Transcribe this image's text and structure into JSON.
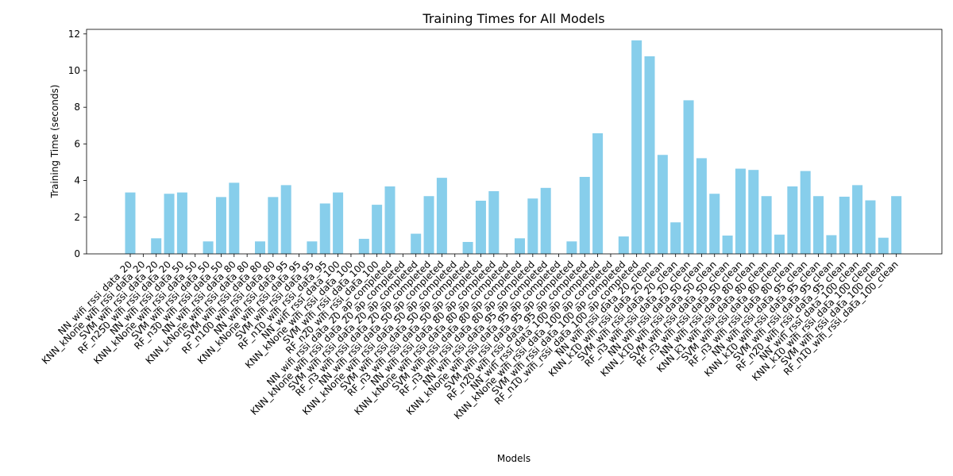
{
  "chart_data": {
    "type": "bar",
    "title": "Training Times for All Models",
    "xlabel": "Models",
    "ylabel": "Training Time (seconds)",
    "ylim": [
      0,
      12.25
    ],
    "yticks": [
      0,
      2,
      4,
      6,
      8,
      10,
      12
    ],
    "bar_color": "#87CEEB",
    "grid": false,
    "categories": [
      "NN_wifi_rssi_data_20",
      "KNN_kNone_wifi_rssi_data_20",
      "SVM_wifi_rssi_data_20",
      "RF_n250_wifi_rssi_data_20",
      "NN_wifi_rssi_data_50",
      "KNN_kNone_wifi_rssi_data_50",
      "SVM_wifi_rssi_data_50",
      "RF_n30_wifi_rssi_data_50",
      "NN_wifi_rssi_data_80",
      "KNN_kNone_wifi_rssi_data_80",
      "SVM_wifi_rssi_data_80",
      "RF_n100_wifi_rssi_data_80",
      "NN_wifi_rssi_data_95",
      "KNN_kNone_wifi_rssi_data_95",
      "SVM_wifi_rssi_data_95",
      "RF_n10_wifi_rssi_data_95",
      "NN_wifi_rssi_data_100",
      "KNN_kNone_wifi_rssi_data_100",
      "SVM_wifi_rssi_data_100",
      "RF_n20_wifi_rssi_data_100",
      "NN_wifi_rssi_data_20_ap_completed",
      "KNN_kNone_wifi_rssi_data_20_ap_completed",
      "SVM_wifi_rssi_data_20_ap_completed",
      "RF_n3_wifi_rssi_data_20_ap_completed",
      "NN_wifi_rssi_data_50_ap_completed",
      "KNN_kNone_wifi_rssi_data_50_ap_completed",
      "SVM_wifi_rssi_data_50_ap_completed",
      "RF_n3_wifi_rssi_data_50_ap_completed",
      "NN_wifi_rssi_data_80_ap_completed",
      "KNN_kNone_wifi_rssi_data_80_ap_completed",
      "SVM_wifi_rssi_data_80_ap_completed",
      "RF_n3_wifi_rssi_data_80_ap_completed",
      "NN_wifi_rssi_data_95_ap_completed",
      "KNN_kNone_wifi_rssi_data_95_ap_completed",
      "SVM_wifi_rssi_data_95_ap_completed",
      "RF_n20_wifi_rssi_data_95_ap_completed",
      "NN_wifi_rssi_data_100_ap_completed",
      "KNN_kNone_wifi_rssi_data_100_ap_completed",
      "SVM_wifi_rssi_data_100_ap_completed",
      "RF_n10_wifi_rssi_data_100_ap_completed",
      "NN_wifi_rssi_data_20_clean",
      "KNN_k10_wifi_rssi_data_20_clean",
      "SVM_wifi_rssi_data_20_clean",
      "RF_n3_wifi_rssi_data_20_clean",
      "NN_wifi_rssi_data_50_clean",
      "KNN_k10_wifi_rssi_data_50_clean",
      "SVM_wifi_rssi_data_50_clean",
      "RF_n3_wifi_rssi_data_50_clean",
      "NN_wifi_rssi_data_80_clean",
      "KNN_k1_wifi_rssi_data_80_clean",
      "SVM_wifi_rssi_data_80_clean",
      "RF_n3_wifi_rssi_data_80_clean",
      "NN_wifi_rssi_data_95_clean",
      "KNN_k10_wifi_rssi_data_95_clean",
      "SVM_wifi_rssi_data_95_clean",
      "RF_n20_wifi_rssi_data_95_clean",
      "NN_wifi_rssi_data_100_clean",
      "KNN_k10_wifi_rssi_data_100_clean",
      "SVM_wifi_rssi_data_100_clean",
      "RF_n10_wifi_rssi_data_100_clean"
    ],
    "values": [
      3.35,
      0.0,
      0.85,
      3.28,
      3.35,
      0.0,
      0.68,
      3.1,
      3.88,
      0.0,
      0.68,
      3.1,
      3.75,
      0.0,
      0.68,
      2.75,
      3.35,
      0.0,
      0.82,
      2.68,
      3.68,
      0.0,
      1.1,
      3.15,
      4.15,
      0.0,
      0.65,
      2.9,
      3.42,
      0.0,
      0.85,
      3.02,
      3.6,
      0.0,
      0.68,
      4.2,
      6.58,
      0.0,
      0.95,
      11.65,
      10.78,
      5.4,
      1.72,
      8.38,
      5.22,
      3.28,
      1.0,
      4.65,
      4.58,
      3.15,
      1.05,
      3.68,
      4.52,
      3.15,
      1.02,
      3.12,
      3.75,
      2.92,
      0.88,
      3.15
    ]
  }
}
